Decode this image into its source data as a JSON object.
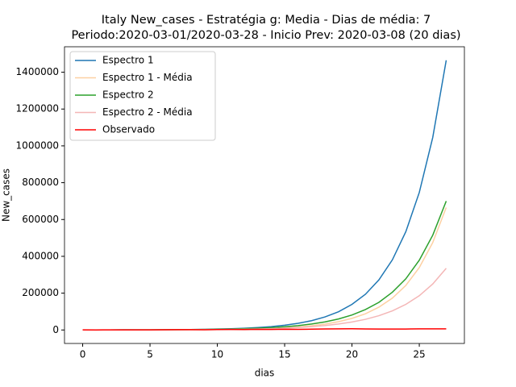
{
  "chart_data": {
    "type": "line",
    "title": [
      "Italy New_cases - Estratégia g: Media - Dias de média: 7",
      "Periodo:2020-03-01/2020-03-28 - Inicio Prev: 2020-03-08 (20 dias)"
    ],
    "xlabel": "dias",
    "ylabel": "New_cases",
    "x": [
      0,
      1,
      2,
      3,
      4,
      5,
      6,
      7,
      8,
      9,
      10,
      11,
      12,
      13,
      14,
      15,
      16,
      17,
      18,
      19,
      20,
      21,
      22,
      23,
      24,
      25,
      26,
      27
    ],
    "series": [
      {
        "name": "Espectro 1",
        "color": "#1f77b4",
        "values": [
          170,
          230,
          330,
          460,
          640,
          900,
          1250,
          1750,
          2450,
          3400,
          4800,
          6700,
          9400,
          13200,
          18400,
          25800,
          36100,
          50600,
          71000,
          99000,
          139000,
          194000,
          272000,
          381000,
          534000,
          747000,
          1046000,
          1465000
        ]
      },
      {
        "name": "Espectro 1 - Média",
        "color": "#fdd0a2",
        "values": [
          76,
          107,
          150,
          210,
          290,
          410,
          570,
          800,
          1120,
          1560,
          2190,
          3060,
          4300,
          6000,
          8400,
          11700,
          16400,
          23000,
          32000,
          45000,
          63000,
          88000,
          124000,
          173000,
          242000,
          339000,
          475000,
          665000
        ]
      },
      {
        "name": "Espectro 2",
        "color": "#2ca02c",
        "values": [
          174,
          237,
          320,
          440,
          595,
          810,
          1100,
          1500,
          2040,
          2770,
          3760,
          5120,
          6960,
          9500,
          12900,
          17500,
          23800,
          32400,
          44000,
          59900,
          81500,
          111000,
          150000,
          205000,
          278000,
          379000,
          515000,
          700000
        ]
      },
      {
        "name": "Espectro 2 - Média",
        "color": "#f4b6b6",
        "values": [
          124,
          166,
          222,
          298,
          400,
          535,
          717,
          960,
          1290,
          1730,
          2310,
          3100,
          4150,
          5570,
          7460,
          10000,
          13400,
          17900,
          24000,
          32200,
          43200,
          57800,
          77500,
          104000,
          139000,
          186000,
          250000,
          335000
        ]
      },
      {
        "name": "Observado",
        "color": "#ff0000",
        "values": [
          573,
          335,
          466,
          587,
          769,
          778,
          1247,
          1492,
          1797,
          977,
          2313,
          2651,
          2547,
          3497,
          2823,
          4000,
          3526,
          4207,
          5322,
          5986,
          6557,
          5560,
          4789,
          5249,
          5210,
          6153,
          5959,
          5959
        ]
      }
    ],
    "xlim": [
      -1.35,
      28.35
    ],
    "xticks": [
      0,
      5,
      10,
      15,
      20,
      25
    ],
    "ylim": [
      -73250,
      1538250
    ],
    "yticks": [
      0,
      200000,
      400000,
      600000,
      800000,
      1000000,
      1200000,
      1400000
    ],
    "legend": "upper left"
  }
}
